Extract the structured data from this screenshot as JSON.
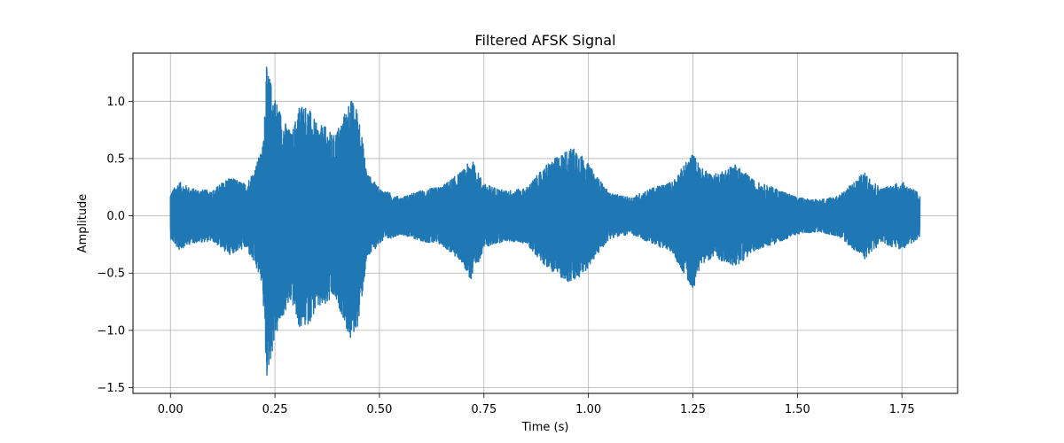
{
  "chart_data": {
    "type": "line",
    "title": "Filtered AFSK Signal",
    "xlabel": "Time (s)",
    "ylabel": "Amplitude",
    "xlim": [
      -0.0896,
      1.8832
    ],
    "ylim": [
      -1.55,
      1.42
    ],
    "xticks": [
      0.0,
      0.25,
      0.5,
      0.75,
      1.0,
      1.25,
      1.5,
      1.75
    ],
    "xtick_labels": [
      "0.00",
      "0.25",
      "0.50",
      "0.75",
      "1.00",
      "1.25",
      "1.50",
      "1.75"
    ],
    "yticks": [
      -1.5,
      -1.0,
      -0.5,
      0.0,
      0.5,
      1.0
    ],
    "ytick_labels": [
      "−1.5",
      "−1.0",
      "−0.5",
      "0.0",
      "0.5",
      "1.0"
    ],
    "grid": true,
    "line_color": "#1f77b4",
    "series": [
      {
        "envelope": {
          "t": [
            0.0,
            0.02,
            0.05,
            0.1,
            0.14,
            0.18,
            0.2,
            0.22,
            0.23,
            0.25,
            0.27,
            0.29,
            0.31,
            0.33,
            0.35,
            0.37,
            0.39,
            0.41,
            0.43,
            0.45,
            0.47,
            0.5,
            0.55,
            0.6,
            0.65,
            0.7,
            0.72,
            0.75,
            0.8,
            0.85,
            0.9,
            0.95,
            0.97,
            1.0,
            1.05,
            1.1,
            1.15,
            1.2,
            1.25,
            1.27,
            1.3,
            1.35,
            1.4,
            1.45,
            1.5,
            1.55,
            1.6,
            1.65,
            1.66,
            1.7,
            1.75,
            1.79
          ],
          "upper": [
            0.2,
            0.3,
            0.24,
            0.22,
            0.34,
            0.28,
            0.4,
            0.6,
            1.3,
            1.05,
            0.85,
            0.72,
            1.0,
            0.95,
            0.8,
            0.78,
            0.7,
            0.84,
            1.03,
            0.92,
            0.38,
            0.24,
            0.16,
            0.22,
            0.26,
            0.4,
            0.5,
            0.28,
            0.22,
            0.24,
            0.45,
            0.58,
            0.6,
            0.45,
            0.2,
            0.16,
            0.24,
            0.3,
            0.55,
            0.42,
            0.36,
            0.45,
            0.3,
            0.24,
            0.16,
            0.14,
            0.18,
            0.35,
            0.38,
            0.24,
            0.3,
            0.2
          ],
          "lower": [
            -0.2,
            -0.3,
            -0.24,
            -0.22,
            -0.34,
            -0.28,
            -0.42,
            -0.6,
            -1.43,
            -1.08,
            -0.88,
            -0.75,
            -1.0,
            -0.95,
            -0.82,
            -0.8,
            -0.72,
            -0.86,
            -1.1,
            -0.95,
            -0.38,
            -0.24,
            -0.16,
            -0.22,
            -0.26,
            -0.42,
            -0.58,
            -0.28,
            -0.22,
            -0.24,
            -0.45,
            -0.58,
            -0.58,
            -0.45,
            -0.2,
            -0.16,
            -0.24,
            -0.32,
            -0.65,
            -0.42,
            -0.36,
            -0.45,
            -0.3,
            -0.24,
            -0.16,
            -0.14,
            -0.18,
            -0.35,
            -0.38,
            -0.24,
            -0.3,
            -0.2
          ]
        },
        "t_start": 0.0,
        "t_end": 1.793
      }
    ]
  }
}
